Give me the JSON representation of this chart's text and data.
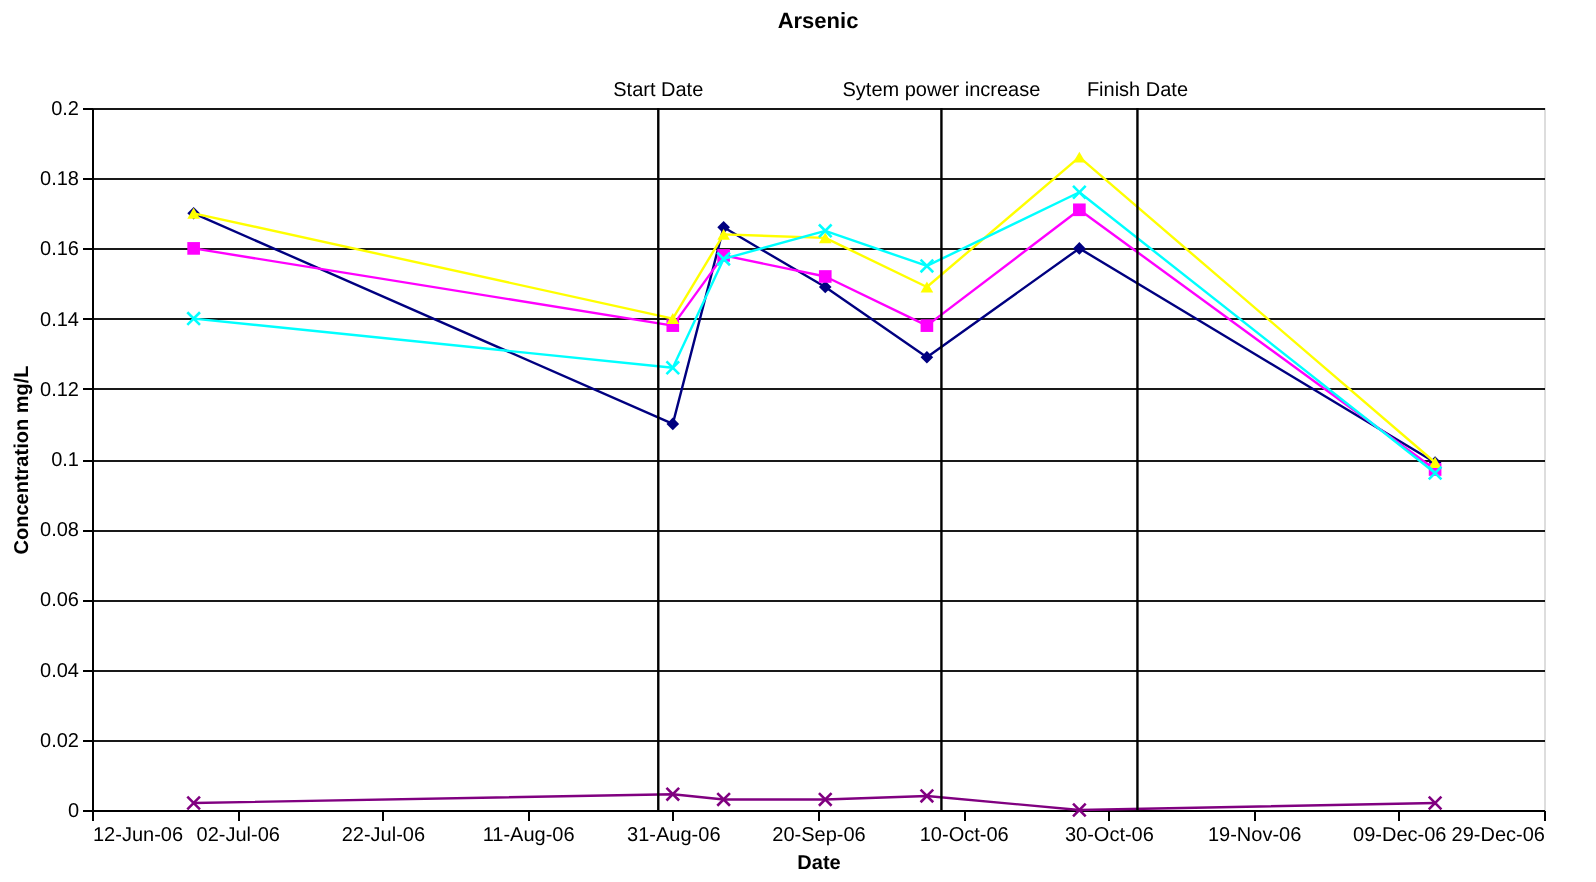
{
  "chart_data": {
    "type": "line",
    "title": "Arsenic",
    "xlabel": "Date",
    "ylabel": "Concentration mg/L",
    "x": [
      "2006-06-26",
      "2006-08-31",
      "2006-09-07",
      "2006-09-21",
      "2006-10-05",
      "2006-10-26",
      "2006-12-14"
    ],
    "series": [
      {
        "color": "#000080",
        "marker": "diamond",
        "values": [
          0.17,
          0.11,
          0.166,
          0.149,
          0.129,
          0.16,
          0.099
        ]
      },
      {
        "color": "#ff00ff",
        "marker": "square",
        "values": [
          0.16,
          0.138,
          0.158,
          0.152,
          0.138,
          0.171,
          0.097
        ]
      },
      {
        "color": "#ffff00",
        "marker": "triangle",
        "values": [
          0.17,
          0.14,
          0.164,
          0.163,
          0.149,
          0.186,
          0.099
        ]
      },
      {
        "color": "#00ffff",
        "marker": "cross",
        "values": [
          0.14,
          0.126,
          0.157,
          0.165,
          0.155,
          0.176,
          0.096
        ]
      },
      {
        "color": "#800080",
        "marker": "cross",
        "values": [
          0.002,
          0.0045,
          0.003,
          0.003,
          0.004,
          0.0,
          0.002
        ]
      }
    ],
    "xlim": [
      "2006-06-12",
      "2006-12-29"
    ],
    "xticks": [
      {
        "value": "2006-06-12",
        "label": "12-Jun-06"
      },
      {
        "value": "2006-07-02",
        "label": "02-Jul-06"
      },
      {
        "value": "2006-07-22",
        "label": "22-Jul-06"
      },
      {
        "value": "2006-08-11",
        "label": "11-Aug-06"
      },
      {
        "value": "2006-08-31",
        "label": "31-Aug-06"
      },
      {
        "value": "2006-09-20",
        "label": "20-Sep-06"
      },
      {
        "value": "2006-10-10",
        "label": "10-Oct-06"
      },
      {
        "value": "2006-10-30",
        "label": "30-Oct-06"
      },
      {
        "value": "2006-11-19",
        "label": "19-Nov-06"
      },
      {
        "value": "2006-12-09",
        "label": "09-Dec-06"
      },
      {
        "value": "2006-12-29",
        "label": "29-Dec-06"
      }
    ],
    "ylim": [
      0,
      0.2
    ],
    "yticks": [
      0,
      0.02,
      0.04,
      0.06,
      0.08,
      0.1,
      0.12,
      0.14,
      0.16,
      0.18,
      0.2
    ],
    "grid": "y",
    "ref_lines": [
      {
        "axis": "x",
        "value": "2006-08-29",
        "label": "Start Date",
        "color": "#000000"
      },
      {
        "axis": "x",
        "value": "2006-10-07",
        "label": "Sytem power increase",
        "color": "#000000"
      },
      {
        "axis": "x",
        "value": "2006-11-03",
        "label": "Finish Date",
        "color": "#000000"
      }
    ]
  }
}
